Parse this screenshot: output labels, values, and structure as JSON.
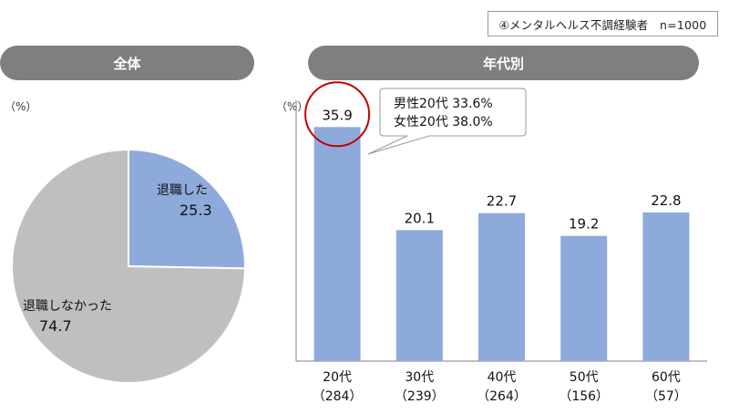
{
  "sample_label": "④メンタルヘルス不調経験者　n=1000",
  "panels": {
    "total": {
      "title": "全体",
      "unit": "（%）"
    },
    "age": {
      "title": "年代別",
      "unit": "（%）"
    }
  },
  "callout": {
    "lines": [
      "男性20代  33.6%",
      "女性20代  38.0%"
    ]
  },
  "colors": {
    "accent": "#8eaadb",
    "other": "#bfbfbf",
    "pill": "#7f7f7f",
    "highlight": "#c00000"
  },
  "chart_data": [
    {
      "type": "pie",
      "title": "全体",
      "unit": "（%）",
      "labels": [
        "退職した",
        "退職しなかった"
      ],
      "values": [
        25.3,
        74.7
      ],
      "value_labels": [
        "25.3",
        "74.7"
      ]
    },
    {
      "type": "bar",
      "title": "年代別",
      "unit": "（%）",
      "categories": [
        "20代",
        "30代",
        "40代",
        "50代",
        "60代"
      ],
      "category_n": [
        "（284）",
        "（239）",
        "（264）",
        "（156）",
        "（57）"
      ],
      "values": [
        35.9,
        20.1,
        22.7,
        19.2,
        22.8
      ],
      "value_labels": [
        "35.9",
        "20.1",
        "22.7",
        "19.2",
        "22.8"
      ],
      "highlighted_category": "20代",
      "ylim": [
        0,
        40
      ]
    }
  ]
}
